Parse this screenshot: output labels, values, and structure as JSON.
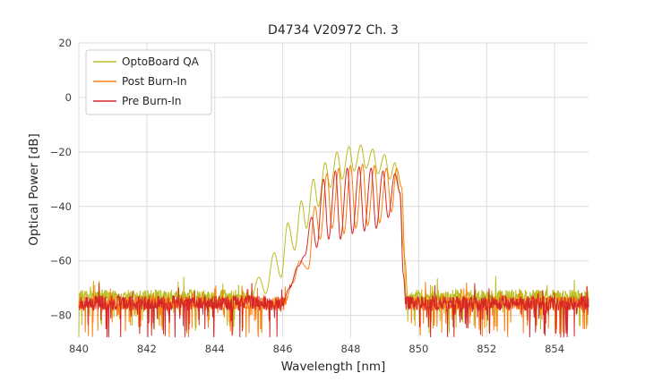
{
  "chart_data": {
    "type": "line",
    "title": "D4734 V20972 Ch. 3",
    "xlabel": "Wavelength [nm]",
    "ylabel": "Optical Power [dB]",
    "xlim": [
      840,
      855
    ],
    "ylim": [
      -88,
      20
    ],
    "xticks": [
      840,
      842,
      844,
      846,
      848,
      850,
      852,
      854
    ],
    "yticks": [
      20,
      0,
      -20,
      -40,
      -60,
      -80
    ],
    "grid": true,
    "grid_color": "#dcdcdc",
    "legend": {
      "position": "upper left"
    },
    "series": [
      {
        "name": "OptoBoard QA",
        "color": "#bcbd22",
        "noise_floor_db": -73,
        "noise_spread_db": 5,
        "seed": 7,
        "envelope": [
          [
            845.0,
            -78
          ],
          [
            845.3,
            -66
          ],
          [
            845.5,
            -72
          ],
          [
            845.75,
            -57
          ],
          [
            845.95,
            -66
          ],
          [
            846.15,
            -46
          ],
          [
            846.35,
            -56
          ],
          [
            846.55,
            -38
          ],
          [
            846.7,
            -48
          ],
          [
            846.9,
            -30
          ],
          [
            847.05,
            -40
          ],
          [
            847.25,
            -24
          ],
          [
            847.4,
            -33
          ],
          [
            847.6,
            -20
          ],
          [
            847.75,
            -30
          ],
          [
            847.95,
            -18
          ],
          [
            848.1,
            -27
          ],
          [
            848.3,
            -17.5
          ],
          [
            848.45,
            -26
          ],
          [
            848.65,
            -19
          ],
          [
            848.8,
            -28
          ],
          [
            849.0,
            -21
          ],
          [
            849.15,
            -30
          ],
          [
            849.3,
            -24
          ],
          [
            849.45,
            -35
          ],
          [
            849.55,
            -55
          ],
          [
            849.65,
            -78
          ]
        ]
      },
      {
        "name": "Post Burn-In",
        "color": "#ff7f0e",
        "noise_floor_db": -75.5,
        "noise_spread_db": 5,
        "seed": 13,
        "envelope": [
          [
            846.0,
            -78
          ],
          [
            846.3,
            -68
          ],
          [
            846.5,
            -60
          ],
          [
            846.75,
            -63
          ],
          [
            846.95,
            -40
          ],
          [
            847.1,
            -52
          ],
          [
            847.3,
            -28
          ],
          [
            847.45,
            -48
          ],
          [
            847.65,
            -26
          ],
          [
            847.8,
            -50
          ],
          [
            848.0,
            -25
          ],
          [
            848.15,
            -48
          ],
          [
            848.35,
            -24.5
          ],
          [
            848.5,
            -47
          ],
          [
            848.7,
            -25
          ],
          [
            848.85,
            -46
          ],
          [
            849.05,
            -26
          ],
          [
            849.2,
            -42
          ],
          [
            849.35,
            -26
          ],
          [
            849.5,
            -33
          ],
          [
            849.6,
            -60
          ],
          [
            849.7,
            -80
          ]
        ]
      },
      {
        "name": "Pre Burn-In",
        "color": "#d62728",
        "noise_floor_db": -75.5,
        "noise_spread_db": 5.5,
        "seed": 29,
        "envelope": [
          [
            845.9,
            -80
          ],
          [
            846.2,
            -70
          ],
          [
            846.45,
            -62
          ],
          [
            846.65,
            -58
          ],
          [
            846.85,
            -44
          ],
          [
            847.0,
            -55
          ],
          [
            847.2,
            -30
          ],
          [
            847.35,
            -52
          ],
          [
            847.55,
            -27
          ],
          [
            847.7,
            -52
          ],
          [
            847.9,
            -26
          ],
          [
            848.05,
            -50
          ],
          [
            848.25,
            -25.5
          ],
          [
            848.4,
            -49
          ],
          [
            848.6,
            -26
          ],
          [
            848.75,
            -48
          ],
          [
            848.95,
            -27
          ],
          [
            849.1,
            -44
          ],
          [
            849.3,
            -28
          ],
          [
            849.45,
            -35
          ],
          [
            849.55,
            -65
          ],
          [
            849.65,
            -82
          ]
        ]
      }
    ]
  }
}
